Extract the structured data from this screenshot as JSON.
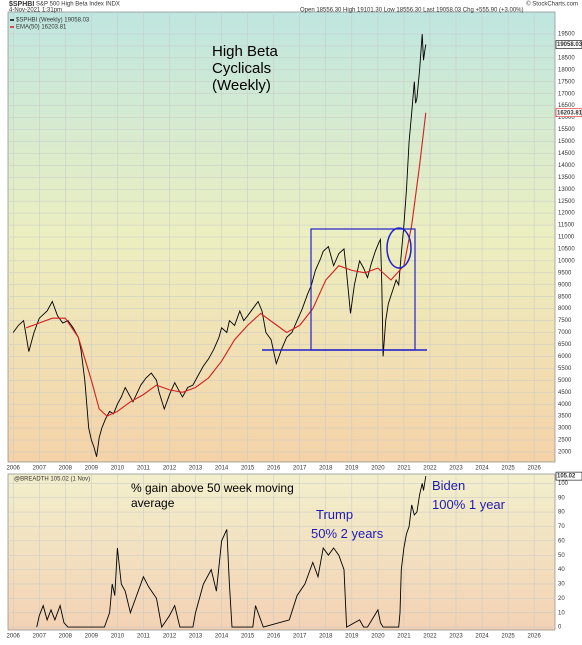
{
  "header": {
    "symbol": "$SPHBI",
    "description": "S&P 500 High Beta Index INDX",
    "date": "4-Nov-2021 1:31pm",
    "quote": "Open 18556.30  High 19101.30  Low 18556.30  Last 19058.03  Chg +555.90 (+3.00%)",
    "source": "© StockCharts.com"
  },
  "chart_data": [
    {
      "type": "line",
      "annotations": [
        "High Beta",
        "Cyclicals",
        "(Weekly)"
      ],
      "xlim": [
        2005.8,
        2026.8
      ],
      "xticks": [
        2006,
        2007,
        2008,
        2009,
        2010,
        2011,
        2012,
        2013,
        2014,
        2015,
        2016,
        2017,
        2018,
        2019,
        2020,
        2021,
        2022,
        2023,
        2024,
        2025,
        2026
      ],
      "ylim": [
        1580,
        20420
      ],
      "yticks": [
        2000,
        2500,
        3000,
        3500,
        4000,
        4500,
        5000,
        5500,
        6000,
        6500,
        7000,
        7500,
        8000,
        8500,
        9000,
        9500,
        10000,
        10500,
        11000,
        11500,
        12000,
        12500,
        13000,
        13500,
        14000,
        14500,
        15000,
        15500,
        16000,
        16500,
        17000,
        17500,
        18000,
        18500,
        19000,
        19500
      ],
      "grid": true,
      "series": [
        {
          "name": "$SPHBI (Weekly) 19058.03",
          "color": "#000000",
          "last_label": "19058.03",
          "x": [
            2006.0,
            2006.2,
            2006.4,
            2006.6,
            2006.8,
            2007.0,
            2007.3,
            2007.5,
            2007.7,
            2007.9,
            2008.1,
            2008.3,
            2008.5,
            2008.6,
            2008.75,
            2008.9,
            2009.0,
            2009.1,
            2009.2,
            2009.3,
            2009.4,
            2009.55,
            2009.7,
            2009.85,
            2010.0,
            2010.15,
            2010.3,
            2010.45,
            2010.6,
            2010.9,
            2011.1,
            2011.3,
            2011.5,
            2011.6,
            2011.8,
            2012.0,
            2012.2,
            2012.4,
            2012.5,
            2012.7,
            2012.9,
            2013.1,
            2013.3,
            2013.5,
            2013.7,
            2013.9,
            2014.0,
            2014.2,
            2014.3,
            2014.5,
            2014.7,
            2014.85,
            2015.0,
            2015.2,
            2015.4,
            2015.55,
            2015.7,
            2015.9,
            2016.1,
            2016.3,
            2016.5,
            2016.7,
            2016.9,
            2017.1,
            2017.3,
            2017.45,
            2017.6,
            2017.8,
            2017.9,
            2018.1,
            2018.2,
            2018.3,
            2018.5,
            2018.7,
            2018.8,
            2018.95,
            2019.1,
            2019.3,
            2019.45,
            2019.6,
            2019.75,
            2019.9,
            2020.05,
            2020.1,
            2020.15,
            2020.2,
            2020.3,
            2020.4,
            2020.55,
            2020.7,
            2020.8,
            2020.9,
            2021.0,
            2021.1,
            2021.2,
            2021.3,
            2021.4,
            2021.45,
            2021.5,
            2021.6,
            2021.7,
            2021.75,
            2021.8,
            2021.84
          ],
          "values": [
            7000,
            7300,
            7500,
            6200,
            7000,
            7600,
            7900,
            8300,
            7700,
            7400,
            7500,
            7200,
            6800,
            6300,
            5000,
            3000,
            2500,
            2200,
            1800,
            2600,
            3000,
            3400,
            3700,
            3600,
            4000,
            4300,
            4700,
            4400,
            4100,
            4800,
            5100,
            5300,
            5000,
            4500,
            3800,
            4400,
            4900,
            4500,
            4300,
            4700,
            4800,
            5200,
            5600,
            5900,
            6300,
            6800,
            7200,
            7000,
            7500,
            7300,
            7900,
            7500,
            7700,
            8000,
            8300,
            7900,
            7000,
            6700,
            5700,
            6300,
            6800,
            7000,
            7500,
            8000,
            8600,
            9000,
            9600,
            10100,
            10400,
            10600,
            10200,
            9800,
            10300,
            10500,
            9500,
            7800,
            9000,
            10000,
            9700,
            9300,
            9900,
            10400,
            10800,
            10900,
            9000,
            6000,
            7500,
            8200,
            8700,
            9200,
            9000,
            10300,
            11500,
            13000,
            15000,
            16200,
            17500,
            16600,
            16800,
            18000,
            19500,
            18400,
            18800,
            19058
          ]
        },
        {
          "name": "EMA(50) 16203.81",
          "color": "#d41f1f",
          "last_label": "16203.81",
          "x": [
            2006.5,
            2007.0,
            2007.5,
            2008.0,
            2008.5,
            2009.0,
            2009.3,
            2009.6,
            2010.0,
            2010.5,
            2011.0,
            2011.5,
            2012.0,
            2012.5,
            2013.0,
            2013.5,
            2014.0,
            2014.5,
            2015.0,
            2015.5,
            2016.0,
            2016.5,
            2017.0,
            2017.5,
            2018.0,
            2018.5,
            2019.0,
            2019.5,
            2020.0,
            2020.5,
            2021.0,
            2021.3,
            2021.6,
            2021.84
          ],
          "values": [
            7200,
            7400,
            7600,
            7600,
            6800,
            5000,
            3800,
            3500,
            3700,
            4100,
            4400,
            4800,
            4600,
            4500,
            4700,
            5100,
            5800,
            6700,
            7300,
            7800,
            7400,
            7000,
            7300,
            8000,
            9200,
            9800,
            9600,
            9500,
            9700,
            9200,
            9800,
            11500,
            14000,
            16204
          ]
        }
      ]
    },
    {
      "type": "line",
      "title": "@BREADTH 105.02 (1 Nov)",
      "annotations": [
        "% gain above 50 week moving",
        "average",
        "Trump",
        "50% 2 years",
        "Biden",
        "100% 1 year"
      ],
      "xlim": [
        2005.8,
        2026.8
      ],
      "xticks": [
        2006,
        2007,
        2008,
        2009,
        2010,
        2011,
        2012,
        2013,
        2014,
        2015,
        2016,
        2017,
        2018,
        2019,
        2020,
        2021,
        2022,
        2023,
        2024,
        2025,
        2026
      ],
      "ylim": [
        -2,
        106.5
      ],
      "yticks": [
        0,
        10,
        20,
        30,
        40,
        50,
        60,
        70,
        80,
        90,
        100
      ],
      "grid": true,
      "series": [
        {
          "name": "@BREADTH",
          "color": "#000000",
          "last_label": "105.02",
          "x": [
            2006.9,
            2007.0,
            2007.15,
            2007.3,
            2007.45,
            2007.6,
            2007.8,
            2007.95,
            2008.1,
            2009.5,
            2009.7,
            2009.8,
            2009.9,
            2010.0,
            2010.15,
            2010.3,
            2010.5,
            2010.7,
            2011.0,
            2011.2,
            2011.5,
            2011.7,
            2012.0,
            2012.2,
            2012.4,
            2012.9,
            2013.0,
            2013.3,
            2013.6,
            2013.8,
            2014.0,
            2014.2,
            2014.3,
            2014.4,
            2015.2,
            2015.3,
            2015.5,
            2015.6,
            2016.6,
            2016.9,
            2017.2,
            2017.5,
            2017.7,
            2017.9,
            2018.1,
            2018.3,
            2018.5,
            2018.7,
            2018.8,
            2019.3,
            2019.45,
            2019.6,
            2020.0,
            2020.1,
            2020.2,
            2020.8,
            2020.85,
            2020.9,
            2021.0,
            2021.1,
            2021.2,
            2021.3,
            2021.4,
            2021.5,
            2021.6,
            2021.7,
            2021.75,
            2021.84
          ],
          "values": [
            0,
            8,
            15,
            5,
            12,
            5,
            15,
            3,
            0,
            0,
            10,
            30,
            22,
            55,
            30,
            25,
            10,
            20,
            35,
            28,
            20,
            0,
            8,
            15,
            0,
            0,
            10,
            30,
            40,
            25,
            60,
            68,
            30,
            0,
            0,
            15,
            5,
            0,
            5,
            22,
            30,
            45,
            35,
            55,
            50,
            55,
            50,
            40,
            0,
            5,
            0,
            0,
            12,
            3,
            0,
            0,
            10,
            40,
            55,
            65,
            70,
            85,
            78,
            80,
            92,
            100,
            95,
            105.02
          ]
        }
      ]
    }
  ]
}
